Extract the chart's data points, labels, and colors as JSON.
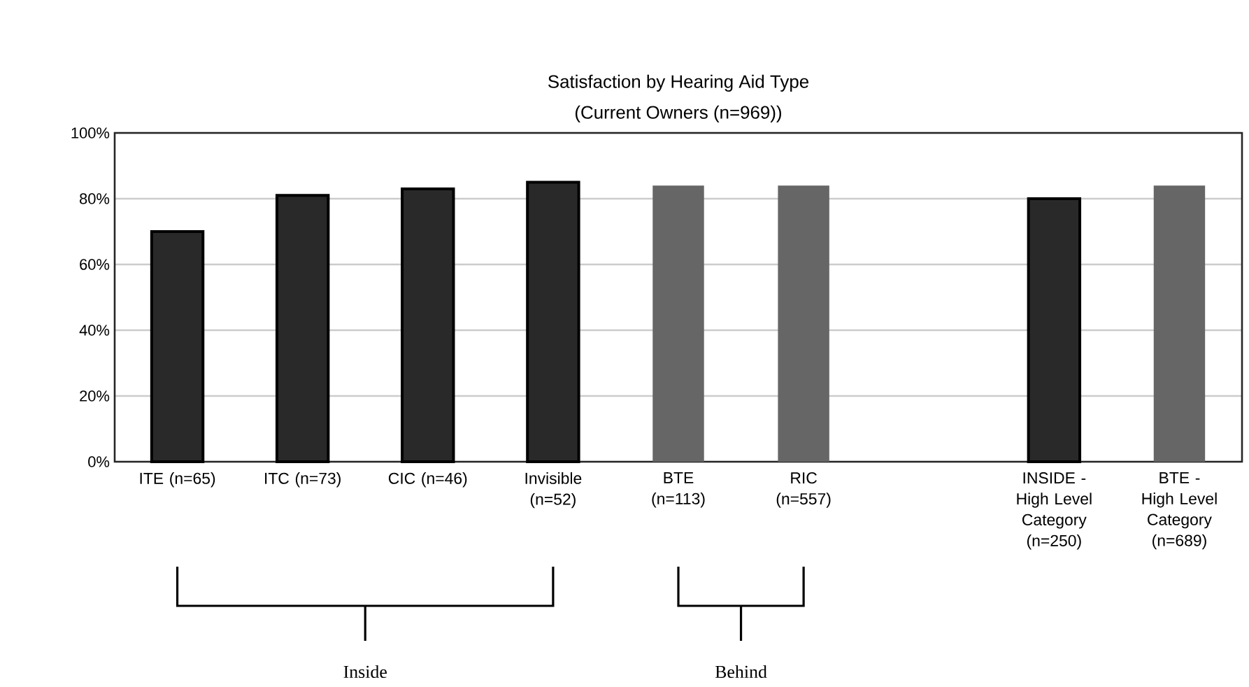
{
  "chart_data": {
    "type": "bar",
    "title": "Satisfaction by Hearing Aid Type",
    "subtitle": "(Current Owners (n=969))",
    "categories": [
      "ITE (n=65)",
      "ITC (n=73)",
      "CIC (n=46)",
      "Invisible (n=52)",
      "BTE (n=113)",
      "RIC (n=557)",
      null,
      "INSIDE - High Level Category (n=250)",
      "BTE - High Level Category (n=689)"
    ],
    "values": [
      70,
      81,
      83,
      85,
      84,
      84,
      null,
      80,
      84
    ],
    "colors": [
      "#292929",
      "#292929",
      "#292929",
      "#292929",
      "#666666",
      "#666666",
      "#666666",
      "#292929",
      "#666666"
    ],
    "ylim": [
      0,
      100
    ],
    "yticks": [
      {
        "value": 0,
        "label": "0%"
      },
      {
        "value": 20,
        "label": "20%"
      },
      {
        "value": 40,
        "label": "40%"
      },
      {
        "value": 60,
        "label": "60%"
      },
      {
        "value": 80,
        "label": "80%"
      },
      {
        "value": 100,
        "label": "100%"
      }
    ],
    "grid": "y",
    "annotations": [
      "Inside",
      "Behind"
    ]
  }
}
